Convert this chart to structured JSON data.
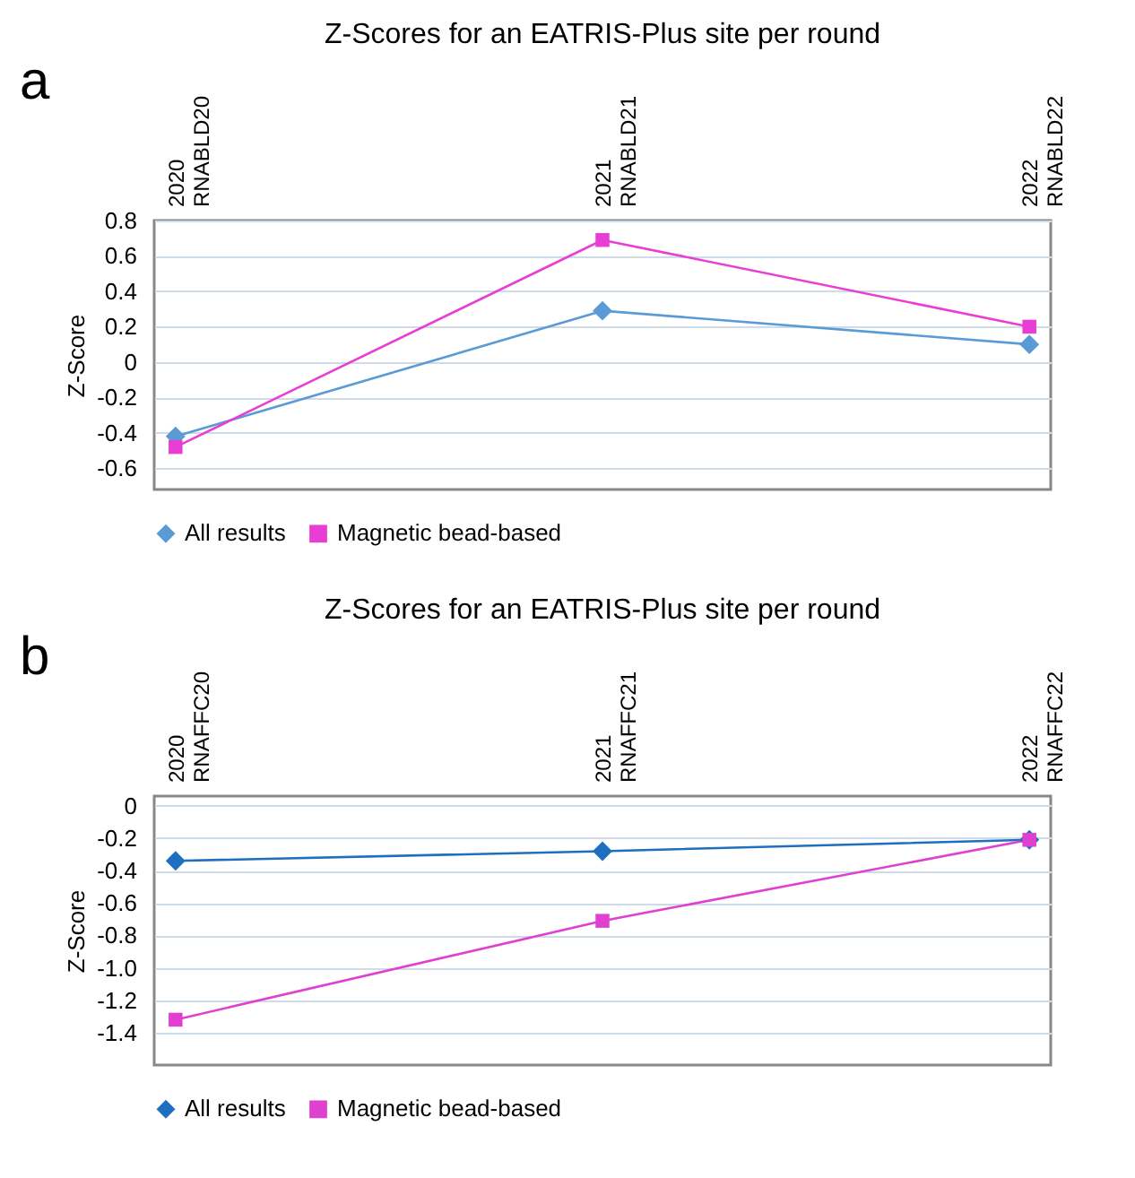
{
  "chart_data": [
    {
      "type": "line",
      "title": "Z-Scores for an EATRIS-Plus site per round",
      "ylabel": "Z-Score",
      "annotations": [
        "a"
      ],
      "categories": [
        "2020\nRNABLD20",
        "2021\nRNABLD21",
        "2022\nRNABLD22"
      ],
      "series": [
        {
          "name": "All results",
          "color": "#5b9bd5",
          "marker": "diamond",
          "values": [
            -0.42,
            0.29,
            0.1
          ]
        },
        {
          "name": "Magnetic bead-based",
          "color": "#e83ed3",
          "marker": "square",
          "values": [
            -0.48,
            0.69,
            0.2
          ]
        }
      ],
      "ylim": [
        -0.72,
        0.8
      ],
      "yticks": [
        -0.6,
        -0.4,
        -0.2,
        0,
        0.2,
        0.4,
        0.6,
        0.8
      ],
      "grid": "y",
      "legend": "bottom"
    },
    {
      "type": "line",
      "title": "Z-Scores for an EATRIS-Plus site per round",
      "ylabel": "Z-Score",
      "annotations": [
        "b"
      ],
      "categories": [
        "2020\nRNAFFC20",
        "2021\nRNAFFC21",
        "2022\nRNAFFC22"
      ],
      "series": [
        {
          "name": "All results",
          "color": "#1f6fc1",
          "marker": "diamond",
          "values": [
            -0.34,
            -0.28,
            -0.21
          ]
        },
        {
          "name": "Magnetic bead-based",
          "color": "#e040d0",
          "marker": "square",
          "values": [
            -1.32,
            -0.71,
            -0.21
          ]
        }
      ],
      "ylim": [
        -1.6,
        0.06
      ],
      "yticks": [
        -1.4,
        {
          "value": -1.2,
          "label": "-1.2"
        },
        {
          "value": -1.0,
          "label": "-1.0"
        },
        -0.8,
        -0.6,
        -0.4,
        -0.2,
        0
      ],
      "grid": "y",
      "legend": "bottom"
    }
  ]
}
